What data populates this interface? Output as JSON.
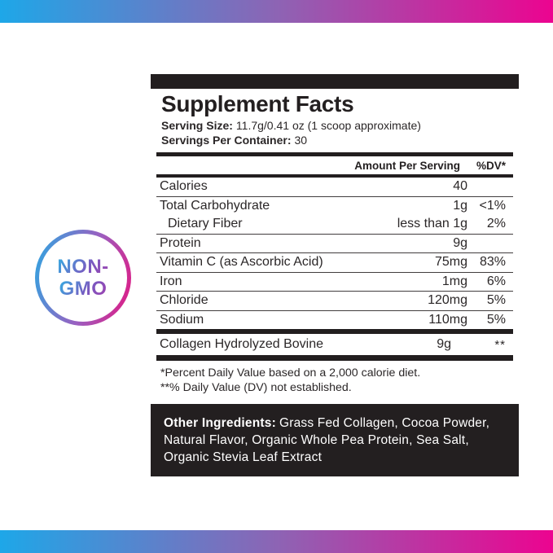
{
  "gradient_bar": {
    "color_left": "#1ea7e8",
    "color_right": "#ec0490"
  },
  "badge": {
    "line1": "NON-",
    "line2": "GMO",
    "ring_blue": "#2aa9e2",
    "ring_pink": "#e5157f"
  },
  "label": {
    "title": "Supplement Facts",
    "serving_size_label": "Serving Size:",
    "serving_size_value": "11.7g/0.41 oz (1 scoop approximate)",
    "servings_label": "Servings Per Container:",
    "servings_value": "30",
    "header": {
      "amount": "Amount Per Serving",
      "dv": "%DV*"
    },
    "rows": [
      {
        "name": "Calories",
        "amount": "40",
        "dv": "",
        "indent": false,
        "sep": true
      },
      {
        "name": "Total Carbohydrate",
        "amount": "1g",
        "dv": "<1%",
        "indent": false,
        "sep": false
      },
      {
        "name": "Dietary Fiber",
        "amount": "less than 1g",
        "dv": "2%",
        "indent": true,
        "sep": true
      },
      {
        "name": "Protein",
        "amount": "9g",
        "dv": "",
        "indent": false,
        "sep": true
      },
      {
        "name": "Vitamin C (as Ascorbic Acid)",
        "amount": "75mg",
        "dv": "83%",
        "indent": false,
        "sep": true
      },
      {
        "name": "Iron",
        "amount": "1mg",
        "dv": "6%",
        "indent": false,
        "sep": true
      },
      {
        "name": "Chloride",
        "amount": "120mg",
        "dv": "5%",
        "indent": false,
        "sep": true
      },
      {
        "name": "Sodium",
        "amount": "110mg",
        "dv": "5%",
        "indent": false,
        "sep": false
      }
    ],
    "collagen_row": {
      "name": "Collagen Hydrolyzed Bovine",
      "amount": "9g",
      "dv": "**"
    },
    "footnotes": [
      "*Percent Daily Value based on a 2,000 calorie diet.",
      "**% Daily Value (DV) not established."
    ],
    "other_ingredients": {
      "label": "Other Ingredients:",
      "text": "Grass Fed Collagen, Cocoa Powder, Natural Flavor, Organic Whole Pea Protein, Sea Salt, Organic Stevia Leaf Extract"
    }
  }
}
